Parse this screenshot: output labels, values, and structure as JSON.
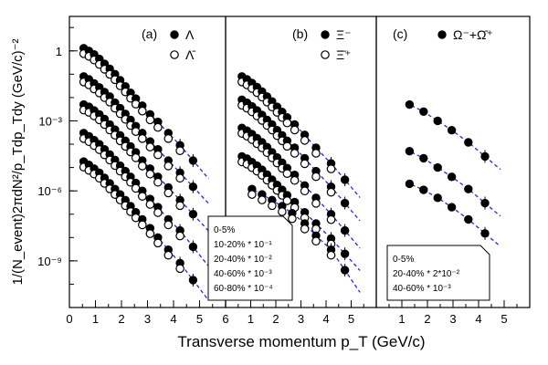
{
  "chart_data": {
    "type": "scatter",
    "ylabel": "1/(N_event)2πdN²/p_Tdp_Tdy (GeV/c)⁻²",
    "xlabel": "Transverse momentum p_T (GeV/c)",
    "x_ticks": [
      "0",
      "1",
      "2",
      "3",
      "4",
      "5",
      "6"
    ],
    "x_ticks_panel": [
      "1",
      "2",
      "3",
      "4",
      "5"
    ],
    "y_ticks": [
      "1",
      "10⁻³",
      "10⁻⁶",
      "10⁻⁹"
    ],
    "y_scale": "log",
    "ylim": [
      1e-11,
      30
    ],
    "panels": [
      {
        "label": "(a)",
        "xlim": [
          0,
          6
        ],
        "legend": [
          {
            "marker": "filled-circle",
            "text": "Λ"
          },
          {
            "marker": "open-circle",
            "text": "Λ̄"
          }
        ],
        "scale_box": [
          "0-5%",
          "10-20% * 10⁻¹",
          "20-40% * 10⁻²",
          "40-60% * 10⁻³",
          "60-80% * 10⁻⁴"
        ],
        "series": [
          {
            "x": [
              0.55,
              0.75,
              0.95,
              1.15,
              1.35,
              1.55,
              1.75,
              1.95,
              2.15,
              2.35,
              2.55,
              2.8,
              3.1,
              3.4,
              3.8,
              4.25,
              4.75
            ],
            "y": [
              1.3,
              1.0,
              0.7,
              0.45,
              0.28,
              0.17,
              0.1,
              0.055,
              0.03,
              0.016,
              0.009,
              0.0045,
              0.0019,
              0.0009,
              0.0003,
              9e-05,
              2e-05
            ]
          },
          {
            "x": [
              0.55,
              0.75,
              0.95,
              1.15,
              1.35,
              1.55,
              1.75,
              1.95,
              2.15,
              2.35,
              2.55,
              2.8,
              3.1,
              3.4,
              3.8,
              4.25,
              4.75
            ],
            "y": [
              0.08,
              0.06,
              0.04,
              0.027,
              0.017,
              0.011,
              0.006,
              0.0035,
              0.002,
              0.0011,
              0.0006,
              0.0003,
              0.00013,
              6e-05,
              2e-05,
              6e-06,
              1.5e-06
            ]
          },
          {
            "x": [
              0.55,
              0.75,
              0.95,
              1.15,
              1.35,
              1.55,
              1.75,
              1.95,
              2.15,
              2.35,
              2.55,
              2.8,
              3.1,
              3.4,
              3.8,
              4.25,
              4.75
            ],
            "y": [
              0.005,
              0.004,
              0.0028,
              0.0019,
              0.0012,
              0.0007,
              0.00042,
              0.00024,
              0.00014,
              8e-05,
              4.5e-05,
              2e-05,
              9e-06,
              4e-06,
              1.4e-06,
              4e-07,
              1e-07
            ]
          },
          {
            "x": [
              0.55,
              0.75,
              0.95,
              1.15,
              1.35,
              1.55,
              1.75,
              1.95,
              2.15,
              2.35,
              2.55,
              2.8,
              3.1,
              3.4,
              3.8,
              4.25,
              4.75
            ],
            "y": [
              0.0003,
              0.00022,
              0.00015,
              0.0001,
              6e-05,
              3.6e-05,
              2.1e-05,
              1.2e-05,
              7e-06,
              4e-06,
              2.2e-06,
              1e-06,
              4.5e-07,
              2e-07,
              6e-08,
              2e-08,
              4e-09
            ]
          },
          {
            "x": [
              0.55,
              0.75,
              0.95,
              1.15,
              1.35,
              1.55,
              1.75,
              1.95,
              2.15,
              2.35,
              2.55,
              2.8,
              3.1,
              3.4,
              3.8,
              4.25,
              4.75
            ],
            "y": [
              1.8e-05,
              1.3e-05,
              9e-06,
              6e-06,
              3.6e-06,
              2.1e-06,
              1.2e-06,
              7e-07,
              4e-07,
              2.2e-07,
              1.2e-07,
              6e-08,
              2.5e-08,
              1e-08,
              3e-09,
              8e-10,
              1.5e-10
            ]
          }
        ]
      },
      {
        "label": "(b)",
        "xlim": [
          0,
          6
        ],
        "legend": [
          {
            "marker": "filled-circle",
            "text": "Ξ⁻"
          },
          {
            "marker": "open-circle",
            "text": "Ξ̄⁺"
          }
        ],
        "series": [
          {
            "x": [
              0.65,
              0.85,
              1.05,
              1.25,
              1.45,
              1.65,
              1.85,
              2.05,
              2.25,
              2.45,
              2.75,
              3.15,
              3.6,
              4.2,
              4.75
            ],
            "y": [
              0.08,
              0.06,
              0.042,
              0.028,
              0.018,
              0.011,
              0.0068,
              0.004,
              0.0024,
              0.0014,
              0.0007,
              0.00025,
              7e-05,
              1.5e-05,
              3e-06
            ]
          },
          {
            "x": [
              0.65,
              0.85,
              1.05,
              1.25,
              1.45,
              1.65,
              1.85,
              2.05,
              2.25,
              2.45,
              2.75,
              3.15,
              3.6,
              4.2,
              4.75
            ],
            "y": [
              0.008,
              0.006,
              0.0042,
              0.0028,
              0.0018,
              0.0011,
              0.0007,
              0.0004,
              0.00024,
              0.00014,
              7e-05,
              2.5e-05,
              7e-06,
              1.5e-06,
              3e-07
            ]
          },
          {
            "x": [
              0.65,
              0.85,
              1.05,
              1.25,
              1.45,
              1.65,
              1.85,
              2.05,
              2.25,
              2.45,
              2.75,
              3.15,
              3.6,
              4.2,
              4.75
            ],
            "y": [
              0.0005,
              0.00038,
              0.00027,
              0.00018,
              0.00012,
              7.5e-05,
              4.5e-05,
              2.7e-05,
              1.6e-05,
              9.5e-06,
              4.8e-06,
              1.7e-06,
              5e-07,
              1e-07,
              2e-08
            ]
          },
          {
            "x": [
              0.65,
              0.85,
              1.05,
              1.25,
              1.45,
              1.65,
              1.85,
              2.05,
              2.25,
              2.45,
              2.75,
              3.15,
              3.6,
              4.2,
              4.75
            ],
            "y": [
              3e-05,
              2.4e-05,
              1.7e-05,
              1.2e-05,
              8e-06,
              5e-06,
              3e-06,
              1.8e-06,
              1.1e-06,
              6.5e-07,
              3.3e-07,
              1.2e-07,
              4e-08,
              9e-09,
              2e-09
            ]
          },
          {
            "x": [
              1.05,
              1.45,
              1.85,
              2.25,
              2.65,
              3.15,
              3.6,
              4.2,
              4.75
            ],
            "y": [
              1.2e-06,
              7e-07,
              4e-07,
              2.2e-07,
              1.1e-07,
              4e-08,
              1.2e-08,
              3e-09,
              4e-10
            ]
          }
        ]
      },
      {
        "label": "(c)",
        "xlim": [
          0,
          6
        ],
        "legend": [
          {
            "marker": "filled-circle",
            "text": "Ω⁻+Ω̄⁺"
          }
        ],
        "scale_box": [
          "0-5%",
          "20-40% * 2*10⁻²",
          "40-60% * 10⁻³"
        ],
        "series": [
          {
            "x": [
              1.3,
              1.85,
              2.4,
              2.95,
              3.6,
              4.25
            ],
            "y": [
              0.005,
              0.0025,
              0.001,
              0.0004,
              0.00012,
              3e-05
            ]
          },
          {
            "x": [
              1.3,
              1.85,
              2.4,
              2.95,
              3.6,
              4.25
            ],
            "y": [
              5e-05,
              2.5e-05,
              1e-05,
              4e-06,
              1.2e-06,
              3e-07
            ]
          },
          {
            "x": [
              1.3,
              1.85,
              2.4,
              2.95,
              3.6,
              4.25
            ],
            "y": [
              2e-06,
              1.1e-06,
              5e-07,
              2e-07,
              6e-08,
              1.5e-08
            ]
          }
        ]
      }
    ]
  }
}
